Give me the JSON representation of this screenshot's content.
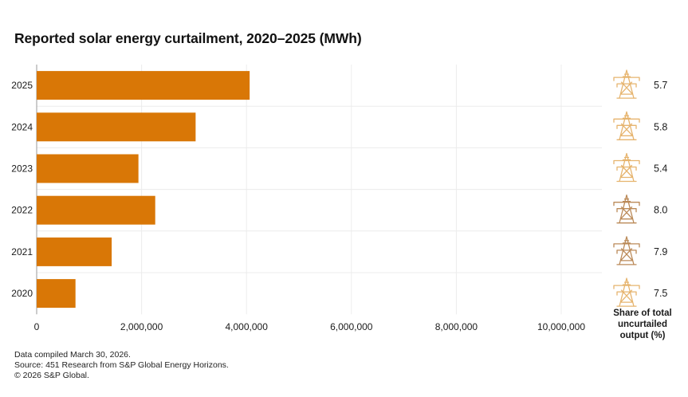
{
  "title": "Reported solar energy curtailment, 2020–2025 (MWh)",
  "chart_data": {
    "type": "bar",
    "orientation": "horizontal",
    "title": "Reported solar energy curtailment, 2020–2025 (MWh)",
    "categories": [
      "2025",
      "2024",
      "2023",
      "2022",
      "2021",
      "2020"
    ],
    "values": [
      4060000,
      3030000,
      1940000,
      2260000,
      1430000,
      740000
    ],
    "xlim": [
      0,
      10000000
    ],
    "xticks": [
      0,
      2000000,
      4000000,
      6000000,
      8000000,
      10000000
    ],
    "xtick_labels": [
      "0",
      "2,000,000",
      "4,000,000",
      "6,000,000",
      "8,000,000",
      "10,000,000"
    ],
    "grid": true,
    "bar_color": "#d97706",
    "share": {
      "label": "Share of total uncurtailed output (%)",
      "values": [
        "5.7",
        "5.8",
        "5.4",
        "8.0",
        "7.9",
        "7.5"
      ],
      "icon": "transmission-tower-icon",
      "icon_colors": [
        "#e6b46e",
        "#e6b46e",
        "#e6b46e",
        "#bb8a58",
        "#bb8a58",
        "#e6b46e"
      ]
    }
  },
  "footer": {
    "line1": "Data compiled March 30, 2026.",
    "line2": "Source: 451 Research from S&P Global Energy Horizons.",
    "line3": "© 2026 S&P Global."
  }
}
